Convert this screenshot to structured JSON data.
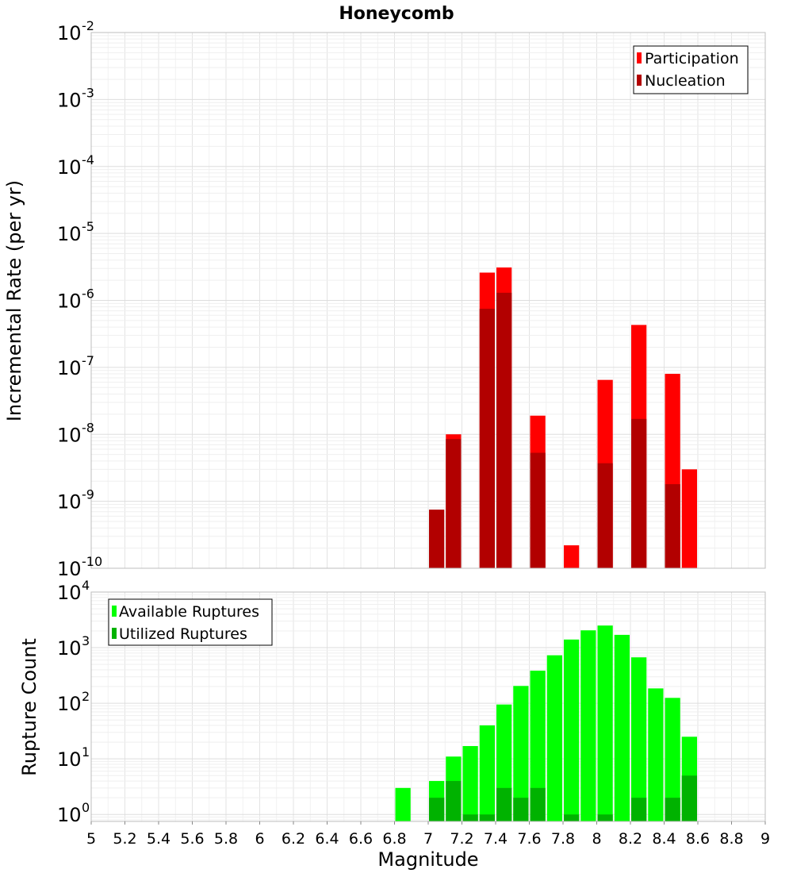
{
  "chart_data": [
    {
      "type": "bar",
      "title": "Honeycomb",
      "xlabel": "",
      "ylabel": "Incremental Rate (per yr)",
      "xlim": [
        5,
        9
      ],
      "ylim": [
        1e-10,
        0.01
      ],
      "yscale": "log",
      "grid": true,
      "legend_placement": "top-right",
      "bin_width": 0.1,
      "x": [
        7.05,
        7.15,
        7.25,
        7.35,
        7.45,
        7.55,
        7.65,
        7.75,
        7.85,
        7.95,
        8.05,
        8.15,
        8.25,
        8.35,
        8.45,
        8.55
      ],
      "series": [
        {
          "name": "Participation",
          "color": "#ff0000",
          "values": [
            null,
            1e-08,
            null,
            2.6e-06,
            3.1e-06,
            null,
            1.9e-08,
            null,
            2.2e-10,
            null,
            6.5e-08,
            null,
            4.3e-07,
            null,
            8e-08,
            3e-09
          ]
        },
        {
          "name": "Nucleation",
          "color": "#b20000",
          "values": [
            7.5e-10,
            8.5e-09,
            null,
            7.5e-07,
            1.3e-06,
            null,
            5.3e-09,
            null,
            null,
            null,
            3.7e-09,
            null,
            1.7e-08,
            null,
            1.8e-09,
            null
          ]
        }
      ],
      "y_ticks": [
        {
          "base": "10",
          "exp": "-2"
        },
        {
          "base": "10",
          "exp": "-3"
        },
        {
          "base": "10",
          "exp": "-4"
        },
        {
          "base": "10",
          "exp": "-5"
        },
        {
          "base": "10",
          "exp": "-6"
        },
        {
          "base": "10",
          "exp": "-7"
        },
        {
          "base": "10",
          "exp": "-8"
        },
        {
          "base": "10",
          "exp": "-9"
        },
        {
          "base": "10",
          "exp": "-10"
        }
      ]
    },
    {
      "type": "bar",
      "title": "",
      "xlabel": "Magnitude",
      "ylabel": "Rupture Count",
      "xlim": [
        5,
        9
      ],
      "ylim": [
        0.75,
        10000
      ],
      "yscale": "log",
      "grid": true,
      "legend_placement": "top-left",
      "bin_width": 0.1,
      "x": [
        6.85,
        7.05,
        7.15,
        7.25,
        7.35,
        7.45,
        7.55,
        7.65,
        7.75,
        7.85,
        7.95,
        8.05,
        8.15,
        8.25,
        8.35,
        8.45,
        8.55
      ],
      "series": [
        {
          "name": "Available Ruptures",
          "color": "#00ff00",
          "values": [
            3,
            4,
            11,
            17,
            40,
            95,
            205,
            385,
            730,
            1400,
            2050,
            2500,
            1700,
            670,
            185,
            125,
            25
          ]
        },
        {
          "name": "Utilized Ruptures",
          "color": "#00b200",
          "values": [
            null,
            2,
            4,
            1,
            1,
            3,
            2,
            3,
            null,
            1,
            null,
            1,
            null,
            2,
            null,
            2,
            5
          ]
        }
      ],
      "y_ticks": [
        {
          "base": "10",
          "exp": "4"
        },
        {
          "base": "10",
          "exp": "3"
        },
        {
          "base": "10",
          "exp": "2"
        },
        {
          "base": "10",
          "exp": "1"
        },
        {
          "base": "10",
          "exp": "0"
        }
      ],
      "x_ticks": [
        "5",
        "5.2",
        "5.4",
        "5.6",
        "5.8",
        "6",
        "6.2",
        "6.4",
        "6.6",
        "6.8",
        "7",
        "7.2",
        "7.4",
        "7.6",
        "7.8",
        "8",
        "8.2",
        "8.4",
        "8.6",
        "8.8",
        "9"
      ]
    }
  ]
}
